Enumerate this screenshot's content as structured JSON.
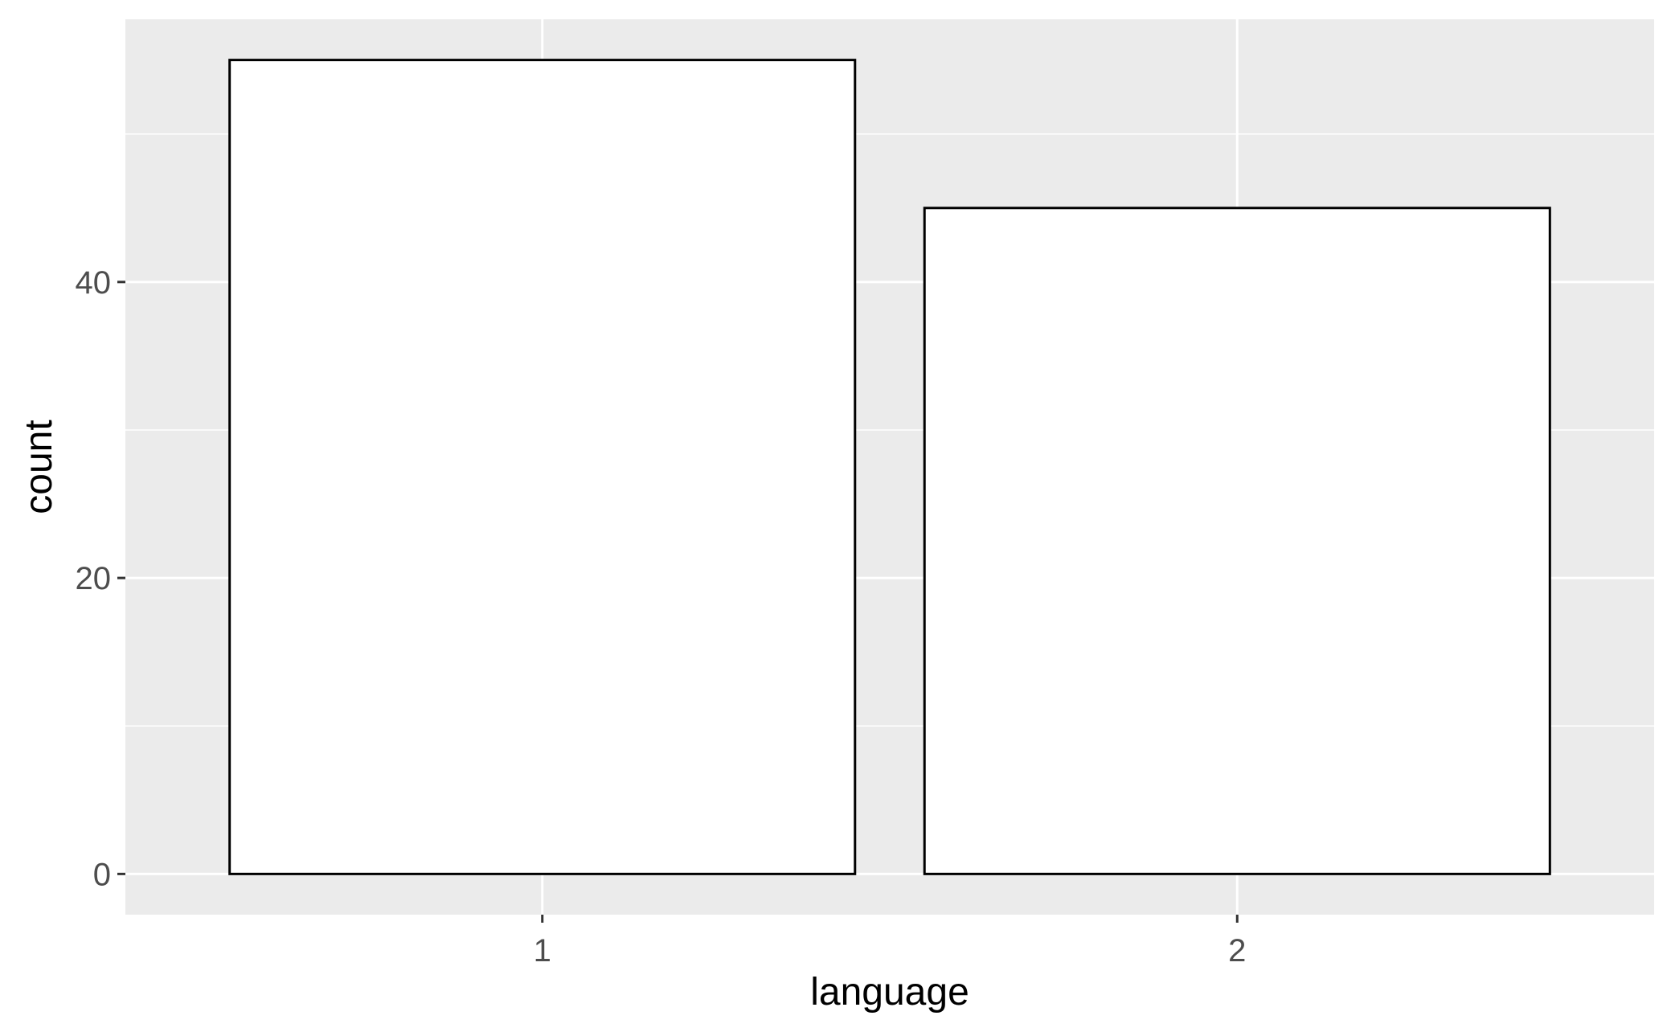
{
  "chart_data": {
    "type": "bar",
    "categories": [
      "1",
      "2"
    ],
    "values": [
      55,
      45
    ],
    "xlabel": "language",
    "ylabel": "count",
    "ylim": [
      -2.75,
      57.75
    ],
    "yticks": [
      0,
      20,
      40
    ],
    "y_minor_ticks": [
      10,
      30,
      50
    ],
    "grid": true,
    "legend": "none",
    "colors": {
      "panel_background": "#ebebeb",
      "grid": "#ffffff",
      "bar_fill": "#ffffff",
      "bar_outline": "#000000",
      "tick_label": "#4d4d4d",
      "axis_title": "#000000"
    }
  }
}
